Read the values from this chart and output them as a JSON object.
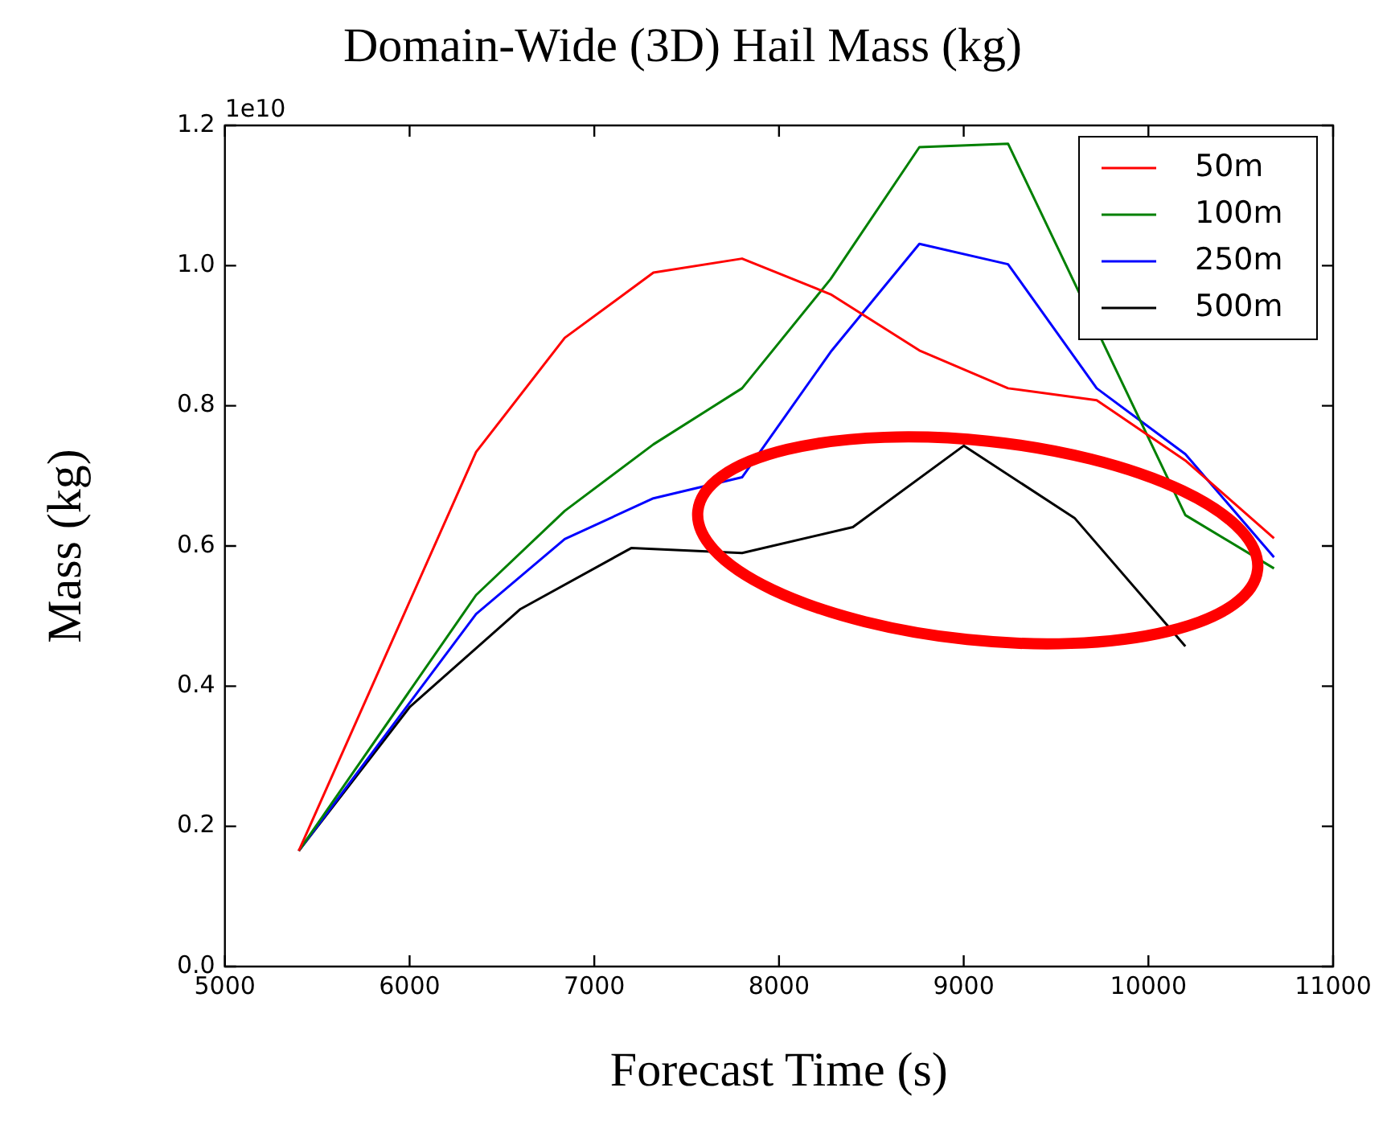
{
  "chart_data": {
    "type": "line",
    "title": "Domain-Wide (3D) Hail Mass (kg)",
    "xlabel": "Forecast Time (s)",
    "ylabel": "Mass (kg)",
    "annotations": [
      "1e10"
    ],
    "series": [
      {
        "name": "50m",
        "color": "#ff0000",
        "x": [
          5400,
          6360,
          6840,
          7320,
          7800,
          8280,
          8760,
          9240,
          9720,
          10200,
          10680
        ],
        "values": [
          0.165,
          0.734,
          0.897,
          0.99,
          1.01,
          0.959,
          0.879,
          0.825,
          0.808,
          0.722,
          0.611
        ]
      },
      {
        "name": "100m",
        "color": "#008000",
        "x": [
          5400,
          6360,
          6840,
          7320,
          7800,
          8280,
          8760,
          9240,
          9720,
          10200,
          10680
        ],
        "values": [
          0.165,
          0.53,
          0.65,
          0.745,
          0.825,
          0.981,
          1.169,
          1.174,
          null,
          0.644,
          0.568
        ]
      },
      {
        "name": "250m",
        "color": "#0000ff",
        "x": [
          5400,
          6360,
          6840,
          7320,
          7800,
          8280,
          8760,
          9240,
          9720,
          10200,
          10680
        ],
        "values": [
          0.165,
          0.503,
          0.61,
          0.668,
          0.698,
          0.877,
          1.031,
          1.002,
          0.825,
          0.731,
          0.584
        ]
      },
      {
        "name": "500m",
        "color": "#000000",
        "x": [
          5400,
          6000,
          6600,
          7200,
          7800,
          8400,
          9000,
          9600,
          10200
        ],
        "values": [
          0.165,
          0.37,
          0.51,
          0.597,
          0.59,
          0.627,
          0.743,
          0.64,
          0.457
        ]
      }
    ],
    "xlim": [
      5000,
      11000
    ],
    "xticks": [
      5000,
      6000,
      7000,
      8000,
      9000,
      10000,
      11000
    ],
    "ylim": [
      0,
      1.2
    ],
    "yticks": [
      {
        "value": 0,
        "label": "0.0"
      },
      0.2,
      0.4,
      0.6,
      0.8,
      {
        "value": 1,
        "label": "1.0"
      },
      1.2
    ],
    "legend": "top right",
    "marker": "none",
    "line_style": "solid"
  }
}
